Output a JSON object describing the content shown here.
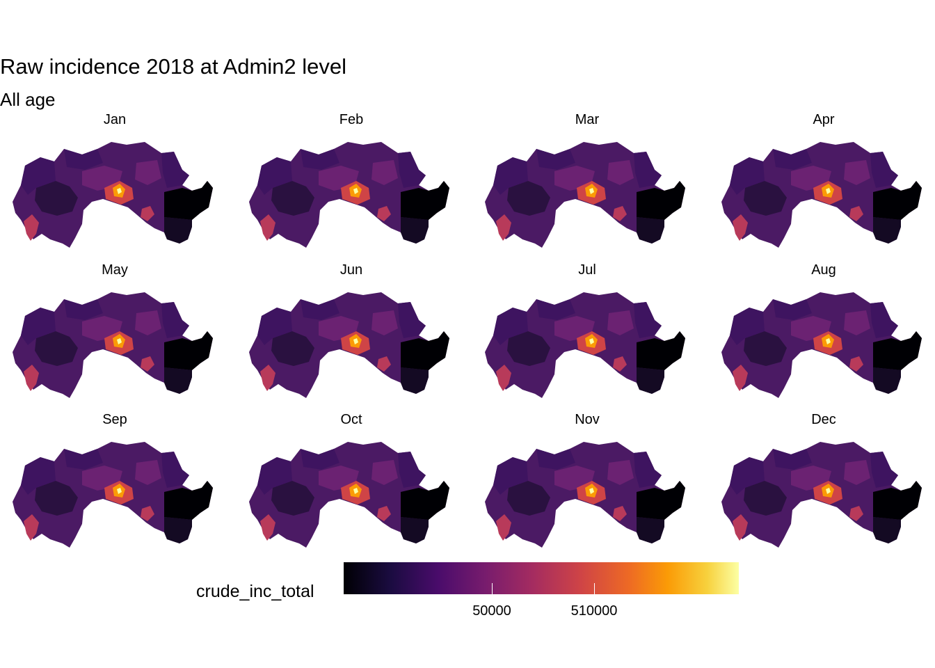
{
  "title": "Raw incidence 2018 at Admin2 level",
  "subtitle": "All age",
  "panels": [
    "Jan",
    "Feb",
    "Mar",
    "Apr",
    "May",
    "Jun",
    "Jul",
    "Aug",
    "Sep",
    "Oct",
    "Nov",
    "Dec"
  ],
  "legend": {
    "title": "crude_inc_total",
    "ticks": [
      "50000",
      "510000"
    ],
    "palette": [
      "#000004",
      "#1b0c41",
      "#4a0c6b",
      "#781c6d",
      "#a52c60",
      "#cf4446",
      "#ed6925",
      "#fb9b06",
      "#f7d13d",
      "#fcffa4"
    ]
  },
  "map_colors": {
    "base": "#4b1a64",
    "dark_east": "#000004",
    "dark_southeast": "#140a23",
    "dark_west": "#2a1140",
    "mid_west": "#3e1460",
    "warm_southwest": "#b83a5a",
    "warm_center": "#cf4446",
    "hot_center": "#fb9b06",
    "hottest": "#fcffa4",
    "plum": "#6b2272"
  }
}
